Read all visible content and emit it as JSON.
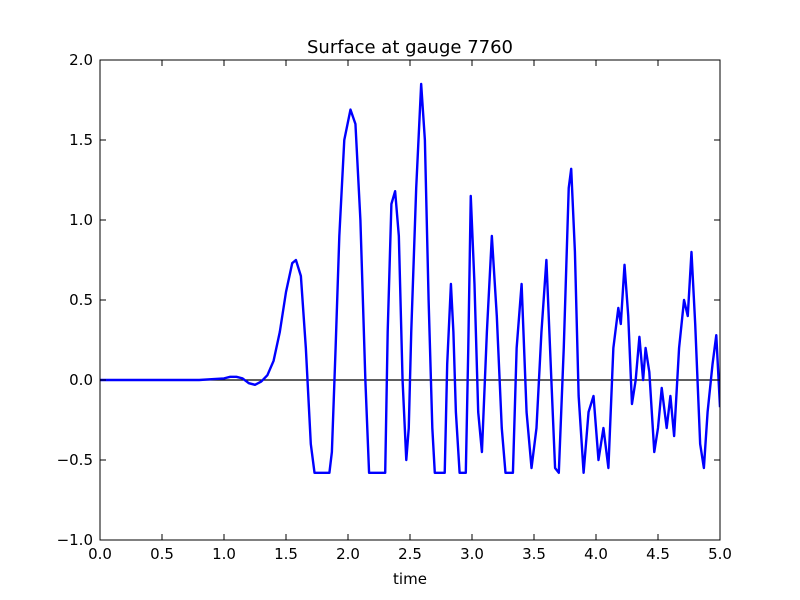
{
  "chart_data": {
    "type": "line",
    "title": "Surface at gauge 7760",
    "xlabel": "time",
    "ylabel": "",
    "xlim": [
      0.0,
      5.0
    ],
    "ylim": [
      -1.0,
      2.0
    ],
    "xticks": [
      "0.0",
      "0.5",
      "1.0",
      "1.5",
      "2.0",
      "2.5",
      "3.0",
      "3.5",
      "4.0",
      "4.5",
      "5.0"
    ],
    "yticks": [
      "−1.0",
      "−0.5",
      "0.0",
      "0.5",
      "1.0",
      "1.5",
      "2.0"
    ],
    "grid": false,
    "reference_line": {
      "y": 0.0,
      "color": "#000000"
    },
    "series": [
      {
        "color": "#0000ff",
        "points": [
          [
            0.0,
            0.0
          ],
          [
            0.2,
            0.0
          ],
          [
            0.4,
            0.0
          ],
          [
            0.6,
            0.0
          ],
          [
            0.8,
            0.0
          ],
          [
            0.9,
            0.005
          ],
          [
            1.0,
            0.01
          ],
          [
            1.05,
            0.02
          ],
          [
            1.1,
            0.02
          ],
          [
            1.15,
            0.01
          ],
          [
            1.2,
            -0.02
          ],
          [
            1.25,
            -0.03
          ],
          [
            1.3,
            -0.01
          ],
          [
            1.35,
            0.03
          ],
          [
            1.4,
            0.12
          ],
          [
            1.45,
            0.3
          ],
          [
            1.5,
            0.55
          ],
          [
            1.55,
            0.73
          ],
          [
            1.58,
            0.75
          ],
          [
            1.62,
            0.65
          ],
          [
            1.66,
            0.2
          ],
          [
            1.7,
            -0.4
          ],
          [
            1.73,
            -0.58
          ],
          [
            1.85,
            -0.58
          ],
          [
            1.87,
            -0.45
          ],
          [
            1.9,
            0.2
          ],
          [
            1.93,
            0.9
          ],
          [
            1.97,
            1.5
          ],
          [
            2.02,
            1.69
          ],
          [
            2.06,
            1.6
          ],
          [
            2.1,
            1.0
          ],
          [
            2.14,
            0.0
          ],
          [
            2.17,
            -0.58
          ],
          [
            2.3,
            -0.58
          ],
          [
            2.32,
            0.3
          ],
          [
            2.35,
            1.1
          ],
          [
            2.38,
            1.18
          ],
          [
            2.41,
            0.9
          ],
          [
            2.44,
            0.0
          ],
          [
            2.47,
            -0.5
          ],
          [
            2.49,
            -0.3
          ],
          [
            2.51,
            0.3
          ],
          [
            2.55,
            1.2
          ],
          [
            2.59,
            1.85
          ],
          [
            2.62,
            1.5
          ],
          [
            2.65,
            0.5
          ],
          [
            2.68,
            -0.3
          ],
          [
            2.7,
            -0.58
          ],
          [
            2.78,
            -0.58
          ],
          [
            2.8,
            0.1
          ],
          [
            2.83,
            0.6
          ],
          [
            2.85,
            0.3
          ],
          [
            2.87,
            -0.2
          ],
          [
            2.9,
            -0.58
          ],
          [
            2.95,
            -0.58
          ],
          [
            2.97,
            0.2
          ],
          [
            2.99,
            1.15
          ],
          [
            3.02,
            0.6
          ],
          [
            3.05,
            -0.2
          ],
          [
            3.08,
            -0.45
          ],
          [
            3.12,
            0.3
          ],
          [
            3.16,
            0.9
          ],
          [
            3.2,
            0.4
          ],
          [
            3.24,
            -0.3
          ],
          [
            3.27,
            -0.58
          ],
          [
            3.33,
            -0.58
          ],
          [
            3.36,
            0.2
          ],
          [
            3.4,
            0.6
          ],
          [
            3.44,
            -0.2
          ],
          [
            3.48,
            -0.55
          ],
          [
            3.52,
            -0.3
          ],
          [
            3.56,
            0.3
          ],
          [
            3.6,
            0.75
          ],
          [
            3.64,
            0.0
          ],
          [
            3.67,
            -0.55
          ],
          [
            3.7,
            -0.58
          ],
          [
            3.74,
            0.2
          ],
          [
            3.78,
            1.2
          ],
          [
            3.8,
            1.32
          ],
          [
            3.83,
            0.8
          ],
          [
            3.86,
            -0.1
          ],
          [
            3.9,
            -0.58
          ],
          [
            3.94,
            -0.2
          ],
          [
            3.98,
            -0.1
          ],
          [
            4.02,
            -0.5
          ],
          [
            4.06,
            -0.3
          ],
          [
            4.1,
            -0.55
          ],
          [
            4.14,
            0.2
          ],
          [
            4.18,
            0.45
          ],
          [
            4.2,
            0.35
          ],
          [
            4.23,
            0.72
          ],
          [
            4.26,
            0.4
          ],
          [
            4.29,
            -0.15
          ],
          [
            4.32,
            0.0
          ],
          [
            4.35,
            0.27
          ],
          [
            4.38,
            0.0
          ],
          [
            4.4,
            0.2
          ],
          [
            4.43,
            0.05
          ],
          [
            4.47,
            -0.45
          ],
          [
            4.5,
            -0.3
          ],
          [
            4.53,
            -0.05
          ],
          [
            4.57,
            -0.3
          ],
          [
            4.6,
            -0.1
          ],
          [
            4.63,
            -0.35
          ],
          [
            4.67,
            0.2
          ],
          [
            4.71,
            0.5
          ],
          [
            4.74,
            0.4
          ],
          [
            4.77,
            0.8
          ],
          [
            4.8,
            0.35
          ],
          [
            4.84,
            -0.4
          ],
          [
            4.87,
            -0.55
          ],
          [
            4.9,
            -0.2
          ],
          [
            4.94,
            0.1
          ],
          [
            4.97,
            0.28
          ],
          [
            5.0,
            -0.17
          ]
        ]
      }
    ]
  }
}
